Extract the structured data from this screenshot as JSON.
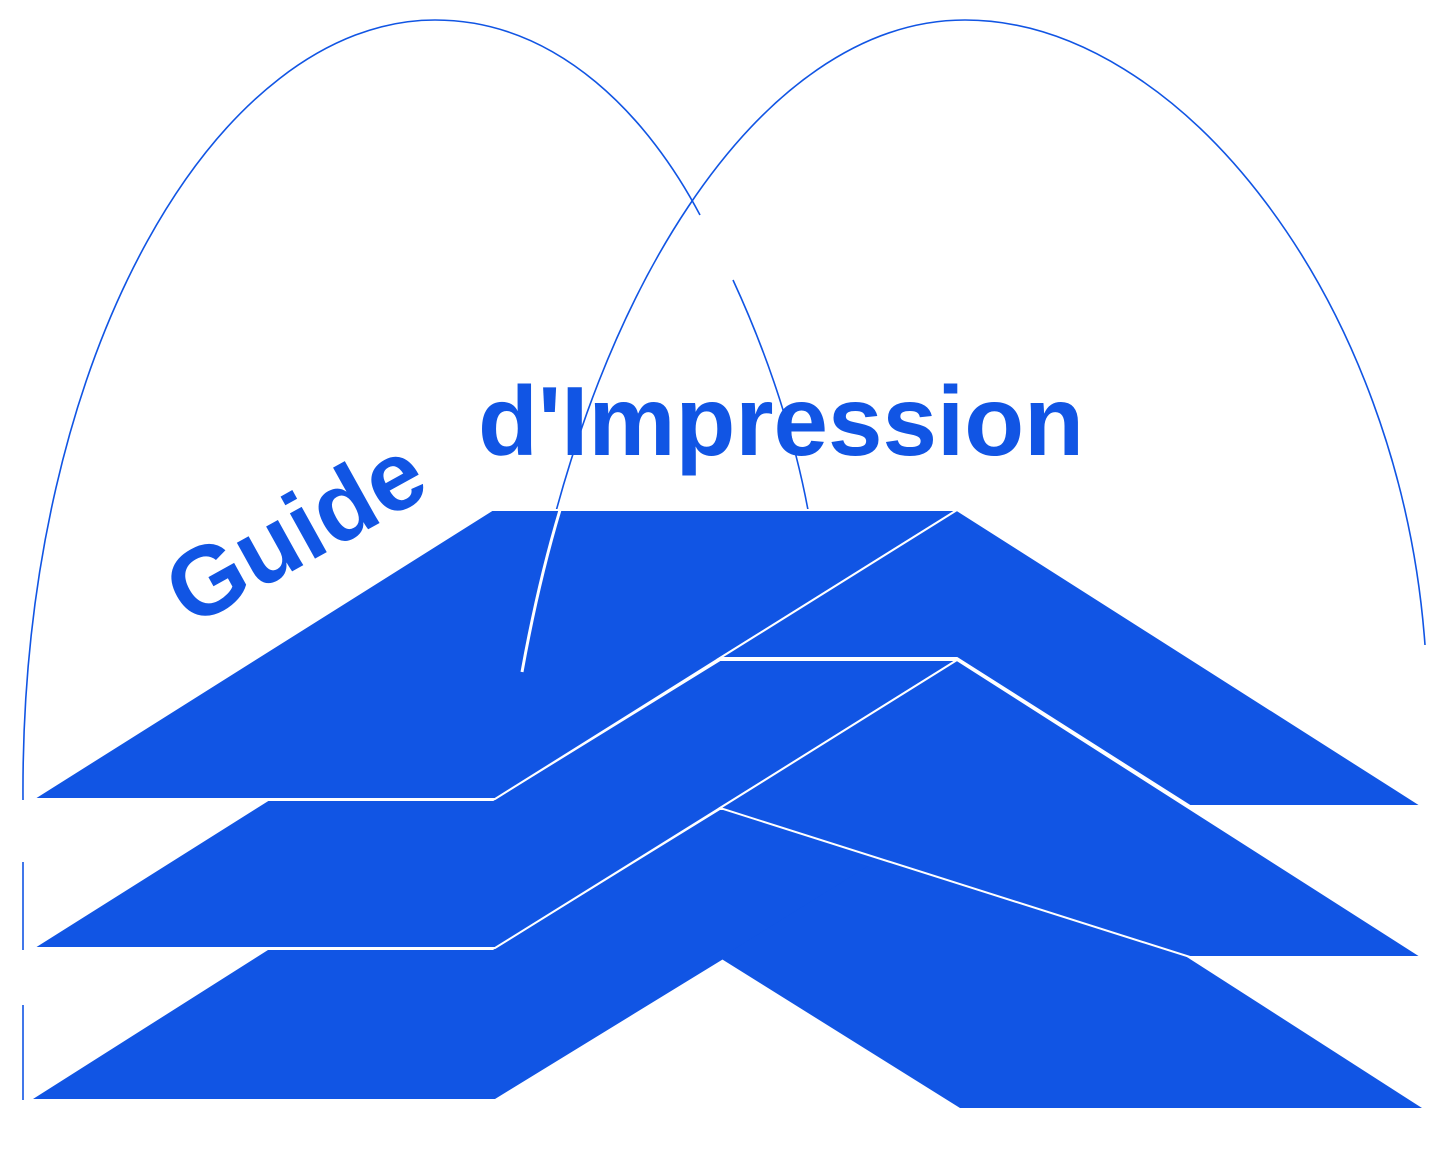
{
  "logo": {
    "title_word_1": "Guide",
    "title_word_2": "d'Impression",
    "colors": {
      "primary": "#1155e4",
      "background": "#ffffff",
      "separator": "#ffffff"
    }
  }
}
